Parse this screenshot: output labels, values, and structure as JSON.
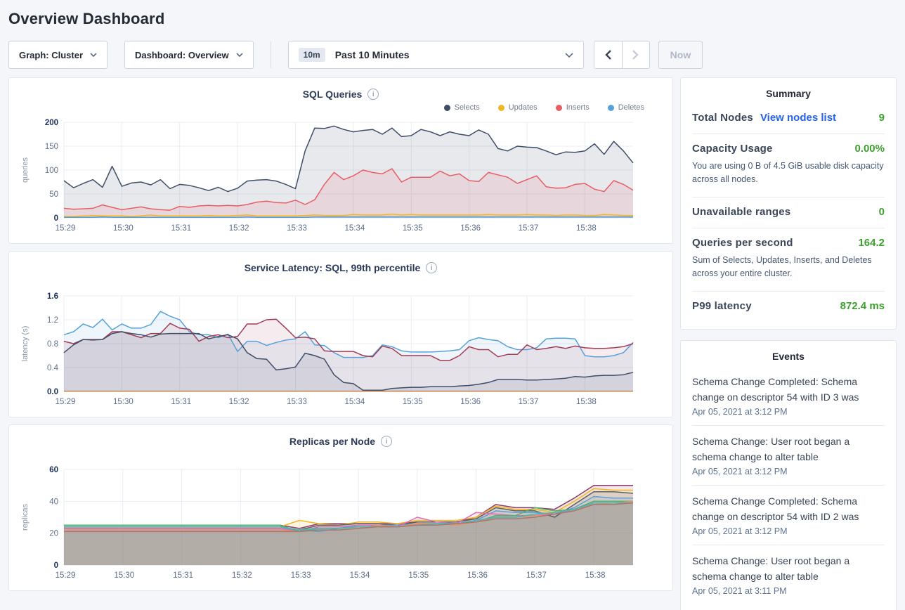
{
  "header": {
    "title": "Overview Dashboard"
  },
  "controls": {
    "graph_label": "Graph: Cluster",
    "dashboard_label": "Dashboard: Overview",
    "time_range_badge": "10m",
    "time_range_label": "Past 10 Minutes",
    "now_button": "Now"
  },
  "colors": {
    "selects_navy": "#3f4d67",
    "updates_yellow": "#f2b824",
    "inserts_red": "#e85d64",
    "deletes_blue": "#57a1da",
    "link_blue": "#2563eb",
    "value_green": "#3da02f"
  },
  "summary": {
    "title": "Summary",
    "rows": [
      {
        "label": "Total Nodes",
        "link": "View nodes list",
        "value": "9"
      },
      {
        "label": "Capacity Usage",
        "value": "0.00%",
        "description": "You are using 0 B of 4.5 GiB usable disk capacity across all nodes."
      },
      {
        "label": "Unavailable ranges",
        "value": "0"
      },
      {
        "label": "Queries per second",
        "value": "164.2",
        "description": "Sum of Selects, Updates, Inserts, and Deletes across your entire cluster."
      },
      {
        "label": "P99 latency",
        "value": "872.4 ms"
      }
    ]
  },
  "events": {
    "title": "Events",
    "items": [
      {
        "message": "Schema Change Completed: Schema change on descriptor 54 with ID 3 was",
        "timestamp": "Apr 05, 2021 at 3:12 PM"
      },
      {
        "message": "Schema Change: User root began a schema change to alter table",
        "timestamp": "Apr 05, 2021 at 3:12 PM"
      },
      {
        "message": "Schema Change Completed: Schema change on descriptor 54 with ID 2 was",
        "timestamp": "Apr 05, 2021 at 3:12 PM"
      },
      {
        "message": "Schema Change: User root began a schema change to alter table",
        "timestamp": "Apr 05, 2021 at 3:11 PM"
      }
    ]
  },
  "chart_data": [
    {
      "type": "area",
      "title": "SQL Queries",
      "ylabel": "queries",
      "ylim": [
        0,
        200
      ],
      "yticks": [
        0,
        50,
        100,
        150,
        200
      ],
      "ytick_labels": [
        "0",
        "50",
        "100",
        "150",
        "200"
      ],
      "x_ticks": [
        "15:29",
        "15:30",
        "15:31",
        "15:32",
        "15:33",
        "15:34",
        "15:35",
        "15:36",
        "15:37",
        "15:38"
      ],
      "points_per_tick": 6,
      "legend_visible": true,
      "fill_opacity": 0.12,
      "series": [
        {
          "name": "Selects",
          "color": "#3f4d67",
          "values": [
            78,
            63,
            72,
            80,
            64,
            108,
            66,
            73,
            75,
            69,
            80,
            61,
            70,
            68,
            63,
            57,
            64,
            55,
            62,
            77,
            79,
            80,
            77,
            70,
            61,
            140,
            188,
            187,
            192,
            185,
            180,
            183,
            185,
            175,
            188,
            170,
            172,
            185,
            180,
            172,
            180,
            175,
            172,
            184,
            175,
            145,
            140,
            150,
            148,
            147,
            140,
            132,
            138,
            137,
            140,
            155,
            133,
            160,
            140,
            115
          ]
        },
        {
          "name": "Updates",
          "color": "#f2b824",
          "values": [
            3,
            3,
            4,
            5,
            4,
            4,
            4,
            3,
            4,
            6,
            4,
            4,
            4,
            4,
            4,
            5,
            4,
            4,
            5,
            6,
            4,
            4,
            4,
            4,
            4,
            5,
            6,
            5,
            5,
            5,
            7,
            6,
            6,
            6,
            8,
            6,
            7,
            6,
            6,
            6,
            6,
            6,
            6,
            6,
            7,
            6,
            6,
            6,
            7,
            6,
            6,
            5,
            6,
            6,
            5,
            5,
            7,
            6,
            5,
            5
          ]
        },
        {
          "name": "Inserts",
          "color": "#e85d64",
          "values": [
            20,
            18,
            19,
            20,
            27,
            22,
            17,
            20,
            23,
            19,
            17,
            16,
            24,
            22,
            25,
            26,
            25,
            26,
            25,
            28,
            33,
            35,
            32,
            31,
            37,
            28,
            38,
            70,
            95,
            80,
            88,
            100,
            95,
            92,
            103,
            75,
            85,
            85,
            85,
            98,
            88,
            92,
            78,
            76,
            95,
            90,
            85,
            72,
            80,
            88,
            65,
            62,
            63,
            70,
            72,
            60,
            55,
            78,
            70,
            58
          ]
        },
        {
          "name": "Deletes",
          "color": "#57a1da",
          "values": [
            1,
            1,
            1,
            1,
            2,
            1,
            1,
            1,
            1,
            1,
            1,
            1,
            1,
            1,
            1,
            1,
            1,
            1,
            1,
            2,
            1,
            1,
            1,
            1,
            1,
            1,
            2,
            2,
            2,
            2,
            2,
            2,
            2,
            2,
            2,
            2,
            2,
            2,
            2,
            2,
            2,
            2,
            2,
            2,
            2,
            2,
            2,
            2,
            2,
            2,
            2,
            2,
            2,
            2,
            2,
            2,
            2,
            2,
            2,
            2
          ]
        }
      ]
    },
    {
      "type": "area",
      "title": "Service Latency: SQL, 99th percentile",
      "ylabel": "latency (s)",
      "ylim": [
        0,
        1.6
      ],
      "yticks": [
        0,
        0.4,
        0.8,
        1.2,
        1.6
      ],
      "ytick_labels": [
        "0.0",
        "0.4",
        "0.8",
        "1.2",
        "1.6"
      ],
      "x_ticks": [
        "15:29",
        "15:30",
        "15:31",
        "15:32",
        "15:33",
        "15:34",
        "15:35",
        "15:36",
        "15:37",
        "15:38"
      ],
      "points_per_tick": 6,
      "legend_visible": false,
      "fill_opacity": 0.1,
      "series": [
        {
          "color": "#57a1da",
          "values": [
            0.95,
            1.0,
            1.13,
            1.07,
            1.21,
            1.03,
            1.13,
            1.06,
            1.06,
            1.12,
            1.34,
            1.26,
            1.2,
            1.0,
            0.95,
            0.95,
            0.9,
            0.96,
            0.67,
            0.84,
            0.84,
            0.77,
            0.82,
            0.86,
            0.88,
            1.0,
            0.78,
            0.77,
            0.65,
            0.57,
            0.57,
            0.57,
            0.6,
            0.78,
            0.75,
            0.68,
            0.66,
            0.66,
            0.66,
            0.67,
            0.68,
            0.7,
            0.85,
            0.9,
            0.87,
            0.85,
            0.75,
            0.7,
            0.7,
            0.73,
            0.88,
            0.89,
            0.89,
            0.88,
            0.6,
            0.58,
            0.58,
            0.6,
            0.65,
            0.82
          ]
        },
        {
          "color": "#a23c55",
          "values": [
            0.84,
            0.8,
            0.87,
            0.87,
            0.87,
            1.0,
            1.0,
            0.95,
            0.9,
            0.97,
            0.97,
            1.14,
            1.06,
            1.04,
            0.84,
            0.92,
            0.95,
            0.9,
            0.92,
            1.13,
            1.13,
            1.2,
            1.21,
            1.06,
            0.9,
            0.91,
            0.88,
            0.68,
            0.67,
            0.67,
            0.67,
            0.6,
            0.58,
            0.76,
            0.72,
            0.6,
            0.6,
            0.6,
            0.6,
            0.52,
            0.52,
            0.6,
            0.75,
            0.7,
            0.7,
            0.58,
            0.62,
            0.62,
            0.78,
            0.7,
            0.72,
            0.75,
            0.72,
            0.76,
            0.73,
            0.72,
            0.72,
            0.73,
            0.75,
            0.8
          ]
        },
        {
          "color": "#3f4d67",
          "values": [
            0.65,
            0.78,
            0.87,
            0.86,
            0.87,
            0.97,
            1.0,
            0.97,
            0.95,
            0.91,
            0.96,
            0.97,
            0.97,
            0.97,
            0.97,
            0.88,
            0.92,
            0.95,
            0.88,
            0.65,
            0.55,
            0.54,
            0.36,
            0.38,
            0.41,
            0.64,
            0.6,
            0.54,
            0.28,
            0.15,
            0.13,
            0.02,
            0.02,
            0.02,
            0.05,
            0.06,
            0.07,
            0.07,
            0.08,
            0.08,
            0.08,
            0.09,
            0.1,
            0.12,
            0.15,
            0.2,
            0.2,
            0.2,
            0.19,
            0.19,
            0.2,
            0.21,
            0.22,
            0.25,
            0.24,
            0.26,
            0.27,
            0.27,
            0.28,
            0.32
          ]
        },
        {
          "color": "#c47f4e",
          "values": [
            0.005,
            0.005,
            0.005,
            0.005,
            0.005,
            0.005,
            0.005,
            0.005,
            0.005,
            0.005,
            0.005,
            0.005,
            0.005,
            0.005,
            0.005,
            0.005,
            0.005,
            0.005,
            0.005,
            0.005,
            0.005,
            0.005,
            0.005,
            0.005,
            0.005,
            0.005,
            0.005,
            0.005,
            0.005,
            0.005,
            0.005,
            0.005,
            0.005,
            0.005,
            0.005,
            0.005,
            0.005,
            0.005,
            0.005,
            0.005,
            0.005,
            0.005,
            0.005,
            0.005,
            0.005,
            0.005,
            0.005,
            0.005,
            0.005,
            0.005,
            0.005,
            0.005,
            0.005,
            0.005,
            0.005,
            0.005,
            0.005,
            0.005,
            0.005,
            0.005
          ]
        }
      ]
    },
    {
      "type": "area",
      "title": "Replicas per Node",
      "ylabel": "replicas",
      "ylim": [
        0,
        60
      ],
      "yticks": [
        0,
        20,
        40,
        60
      ],
      "ytick_labels": [
        "0",
        "20",
        "40",
        "60"
      ],
      "x_ticks": [
        "15:29",
        "15:30",
        "15:31",
        "15:32",
        "15:33",
        "15:34",
        "15:35",
        "15:36",
        "15:37",
        "15:38"
      ],
      "points_per_tick": 3,
      "legend_visible": false,
      "fill_opacity": 0.12,
      "series": [
        {
          "color": "#8e3d68",
          "values": [
            25,
            25,
            25,
            25,
            25,
            25,
            25,
            25,
            25,
            25,
            25,
            25,
            23,
            26,
            26,
            26,
            26,
            26,
            27,
            27,
            27,
            30,
            38,
            36,
            36,
            35,
            42,
            50,
            50,
            50
          ]
        },
        {
          "color": "#f2b824",
          "values": [
            24,
            24,
            24,
            24,
            24,
            24,
            24,
            24,
            24,
            24,
            24,
            24,
            28,
            26,
            25,
            27,
            27,
            26,
            28,
            28,
            28,
            30,
            37,
            35,
            35,
            33,
            40,
            48,
            47,
            47
          ]
        },
        {
          "color": "#5b5f66",
          "values": [
            24,
            24,
            24,
            24,
            24,
            24,
            24,
            24,
            24,
            24,
            24,
            24,
            22,
            25,
            25,
            26,
            26,
            25,
            27,
            27,
            27,
            29,
            36,
            34,
            34,
            30,
            38,
            46,
            46,
            45
          ]
        },
        {
          "color": "#5f9ed6",
          "values": [
            23,
            23,
            23,
            23,
            23,
            23,
            23,
            23,
            23,
            23,
            23,
            23,
            22,
            21,
            23,
            25,
            25,
            25,
            26,
            26,
            26,
            28,
            34,
            33,
            33,
            32,
            36,
            43,
            42,
            42
          ]
        },
        {
          "color": "#e06bb2",
          "values": [
            23,
            23,
            23,
            23,
            23,
            23,
            23,
            23,
            23,
            23,
            23,
            23,
            21,
            24,
            24,
            25,
            25,
            24,
            30,
            27,
            26,
            33,
            32,
            31,
            31,
            32,
            35,
            40,
            40,
            40
          ]
        },
        {
          "color": "#55b06b",
          "values": [
            25,
            25,
            25,
            25,
            25,
            25,
            25,
            25,
            25,
            25,
            25,
            25,
            21,
            23,
            23,
            24,
            24,
            24,
            26,
            26,
            26,
            27,
            31,
            31,
            36,
            34,
            35,
            40,
            40,
            40
          ]
        },
        {
          "color": "#ee8b67",
          "values": [
            22,
            22,
            22,
            22,
            22,
            22,
            22,
            22,
            22,
            22,
            22,
            22,
            21,
            22,
            22,
            23,
            25,
            24,
            26,
            26,
            25,
            27,
            30,
            30,
            31,
            33,
            35,
            38,
            39,
            40
          ]
        },
        {
          "color": "#41b9b4",
          "values": [
            24,
            24,
            24,
            24,
            24,
            24,
            24,
            24,
            24,
            24,
            24,
            24,
            22,
            23,
            23,
            24,
            24,
            24,
            25,
            26,
            26,
            28,
            30,
            30,
            32,
            33,
            35,
            39,
            39,
            39
          ]
        },
        {
          "color": "#a8766c",
          "values": [
            21,
            21,
            21,
            21,
            21,
            21,
            21,
            21,
            21,
            21,
            21,
            21,
            21,
            22,
            22,
            23,
            24,
            24,
            25,
            25,
            26,
            27,
            29,
            29,
            30,
            32,
            34,
            38,
            38,
            39
          ]
        }
      ]
    }
  ]
}
